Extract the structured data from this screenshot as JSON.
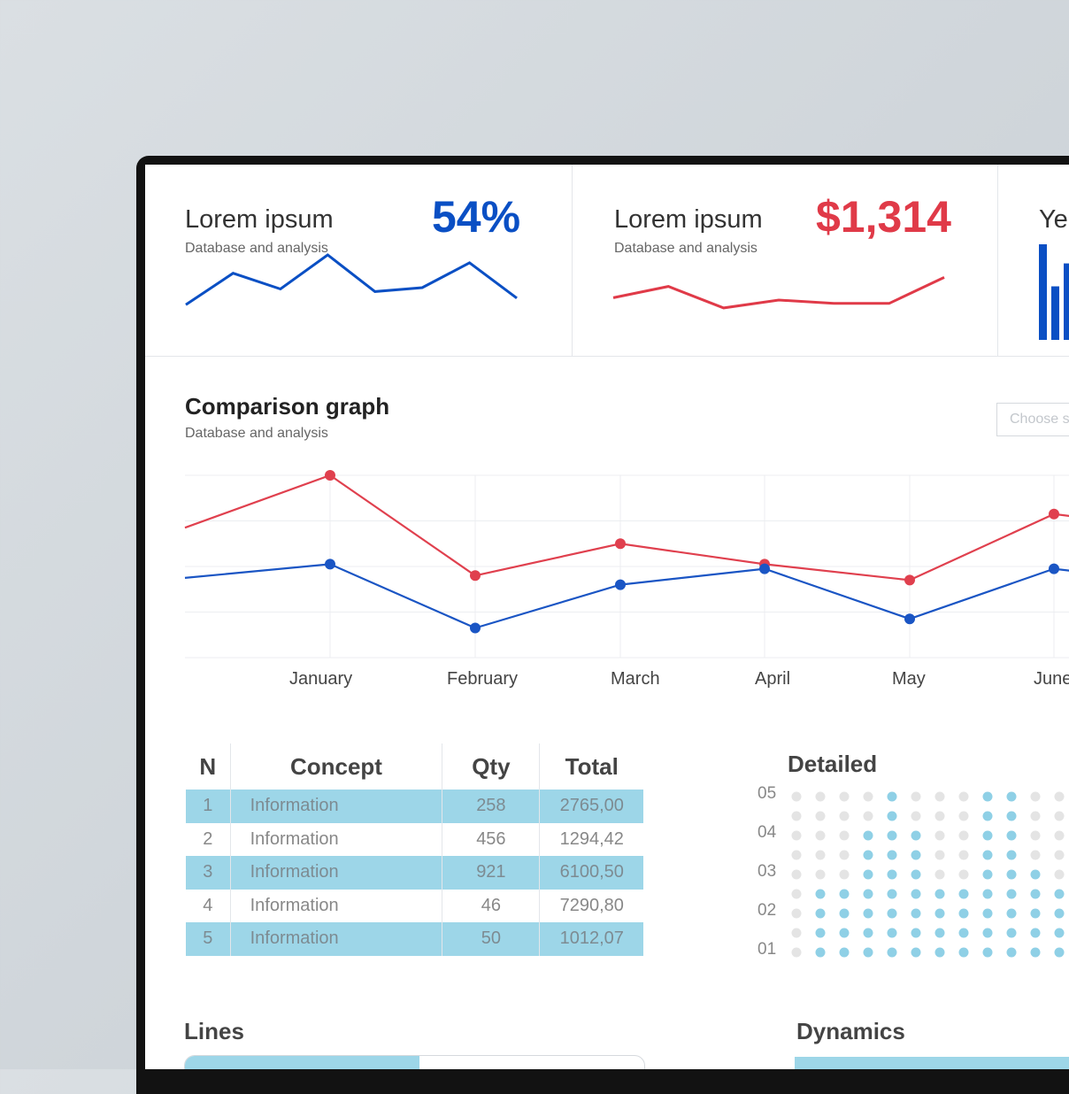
{
  "cards": [
    {
      "title": "Lorem ipsum",
      "subtitle": "Database and analysis",
      "value": "54%",
      "color": "#0a4fc4",
      "sparkline": [
        62,
        86,
        74,
        100,
        72,
        75,
        94,
        67
      ]
    },
    {
      "title": "Lorem ipsum",
      "subtitle": "Database and analysis",
      "value": "$1,314",
      "color": "#e03a48",
      "sparkline": [
        70,
        80,
        61,
        68,
        65,
        65,
        88
      ]
    },
    {
      "title": "Ye",
      "color": "#0a4fc4",
      "bars": [
        100,
        56,
        80
      ]
    }
  ],
  "comparison": {
    "title": "Comparison graph",
    "subtitle": "Database and analysis",
    "select_placeholder": "Choose s"
  },
  "chart_data": {
    "type": "line",
    "categories": [
      "January",
      "February",
      "March",
      "April",
      "May",
      "June"
    ],
    "series": [
      {
        "color": "#e0404e",
        "start": 77,
        "values": [
          100,
          56,
          70,
          61,
          54,
          83
        ]
      },
      {
        "color": "#1a55c4",
        "start": 55,
        "values": [
          61,
          33,
          52,
          59,
          37,
          59
        ]
      }
    ],
    "ylim": [
      0,
      100
    ],
    "grid": true
  },
  "table": {
    "headers": [
      "N",
      "Concept",
      "Qty",
      "Total"
    ],
    "rows": [
      [
        "1",
        "Information",
        "258",
        "2765,00"
      ],
      [
        "2",
        "Information",
        "456",
        "1294,42"
      ],
      [
        "3",
        "Information",
        "921",
        "6100,50"
      ],
      [
        "4",
        "Information",
        "46",
        "7290,80"
      ],
      [
        "5",
        "Information",
        "50",
        "1012,07"
      ]
    ],
    "highlight_color": "#9dd6e8"
  },
  "detailed": {
    "title": "Detailed",
    "y_labels": [
      "05",
      "04",
      "03",
      "02",
      "01"
    ],
    "active_color": "#8fd0e6",
    "inactive_color": "#e4e4e4",
    "column_levels": [
      0,
      2,
      2,
      4,
      5,
      4,
      2,
      2,
      5,
      5,
      3,
      2
    ]
  },
  "lines": {
    "title": "Lines",
    "fill_fraction": 0.51
  },
  "dynamics": {
    "title": "Dynamics"
  }
}
